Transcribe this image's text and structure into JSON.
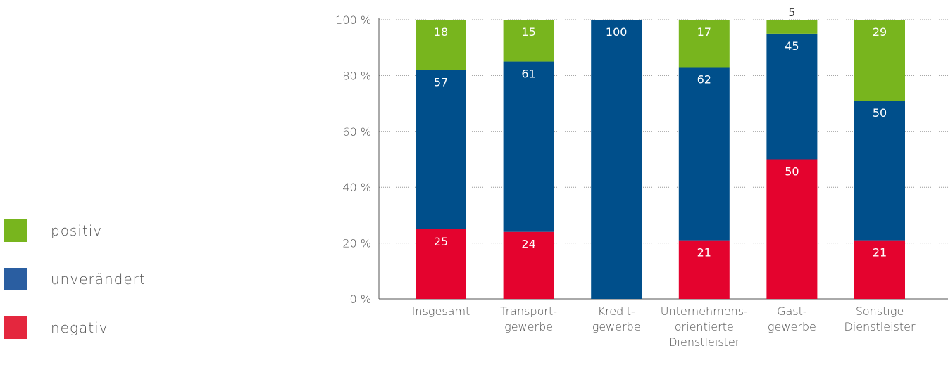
{
  "chart_data": {
    "type": "bar",
    "stacked": true,
    "title": "",
    "xlabel": "",
    "ylabel": "",
    "ylim": [
      0,
      100
    ],
    "yticks": [
      0,
      20,
      40,
      60,
      80,
      100
    ],
    "ytick_labels": [
      "0 %",
      "20 %",
      "40 %",
      "60 %",
      "80 %",
      "100 %"
    ],
    "grid": "horizontal-dotted",
    "legend_position": "left",
    "categories": [
      [
        "Insgesamt"
      ],
      [
        "Transport-",
        "gewerbe"
      ],
      [
        "Kredit-",
        "gewerbe"
      ],
      [
        "Unternehmens-",
        "orientierte",
        "Dienstleister"
      ],
      [
        "Gast-",
        "gewerbe"
      ],
      [
        "Sonstige",
        "Dienstleister"
      ]
    ],
    "series": [
      {
        "key": "negativ",
        "name": "negativ",
        "color": "#e4032e",
        "values": [
          25,
          24,
          0,
          21,
          50,
          21
        ]
      },
      {
        "key": "unveraendert",
        "name": "unverändert",
        "color": "#004f8b",
        "values": [
          57,
          61,
          100,
          62,
          45,
          50
        ]
      },
      {
        "key": "positiv",
        "name": "positiv",
        "color": "#78b51e",
        "values": [
          18,
          15,
          0,
          17,
          5,
          29
        ]
      }
    ]
  },
  "legend": [
    {
      "label": "positiv",
      "color": "#78b51e"
    },
    {
      "label": "unverändert",
      "color": "#2a5ea1"
    },
    {
      "label": "negativ",
      "color": "#e4273e"
    }
  ]
}
